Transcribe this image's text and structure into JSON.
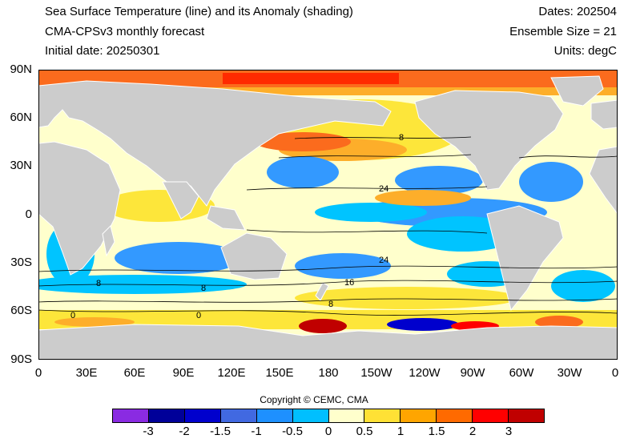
{
  "header": {
    "title": "Sea Surface Temperature (line) and its Anomaly (shading)",
    "model": "CMA-CPSv3 monthly forecast",
    "initial_date": "Initial date: 20250301",
    "dates": "Dates: 202504",
    "ensemble": "Ensemble Size = 21",
    "units": "Units: degC"
  },
  "map": {
    "lat_labels": [
      "90N",
      "60N",
      "30N",
      "0",
      "30S",
      "60S",
      "90S"
    ],
    "lon_labels": [
      "0",
      "30E",
      "60E",
      "90E",
      "120E",
      "150E",
      "180",
      "150W",
      "120W",
      "90W",
      "60W",
      "30W",
      "0"
    ],
    "contour_labels": [
      "8",
      "24",
      "24",
      "16",
      "8",
      "8",
      "0",
      "0",
      "8"
    ],
    "land_color": "#cccccc",
    "ocean_fill_colors": {
      "neutral": "#ffffcc",
      "warm_light": "#fde63a",
      "warm": "#fdae2a",
      "warm_strong": "#fb6b1d",
      "cold_light": "#00c4ff",
      "cold": "#3399ff"
    }
  },
  "copyright": "Copyright © CEMC, CMA",
  "colorbar": {
    "colors": [
      "#8a2be2",
      "#000099",
      "#0000cd",
      "#4169e1",
      "#1e90ff",
      "#00bfff",
      "#ffffcc",
      "#ffe135",
      "#ffa500",
      "#ff6a00",
      "#ff0000",
      "#c00000"
    ],
    "labels": [
      "-3",
      "-2",
      "-1.5",
      "-1",
      "-0.5",
      "0",
      "0.5",
      "1",
      "1.5",
      "2",
      "3"
    ]
  }
}
